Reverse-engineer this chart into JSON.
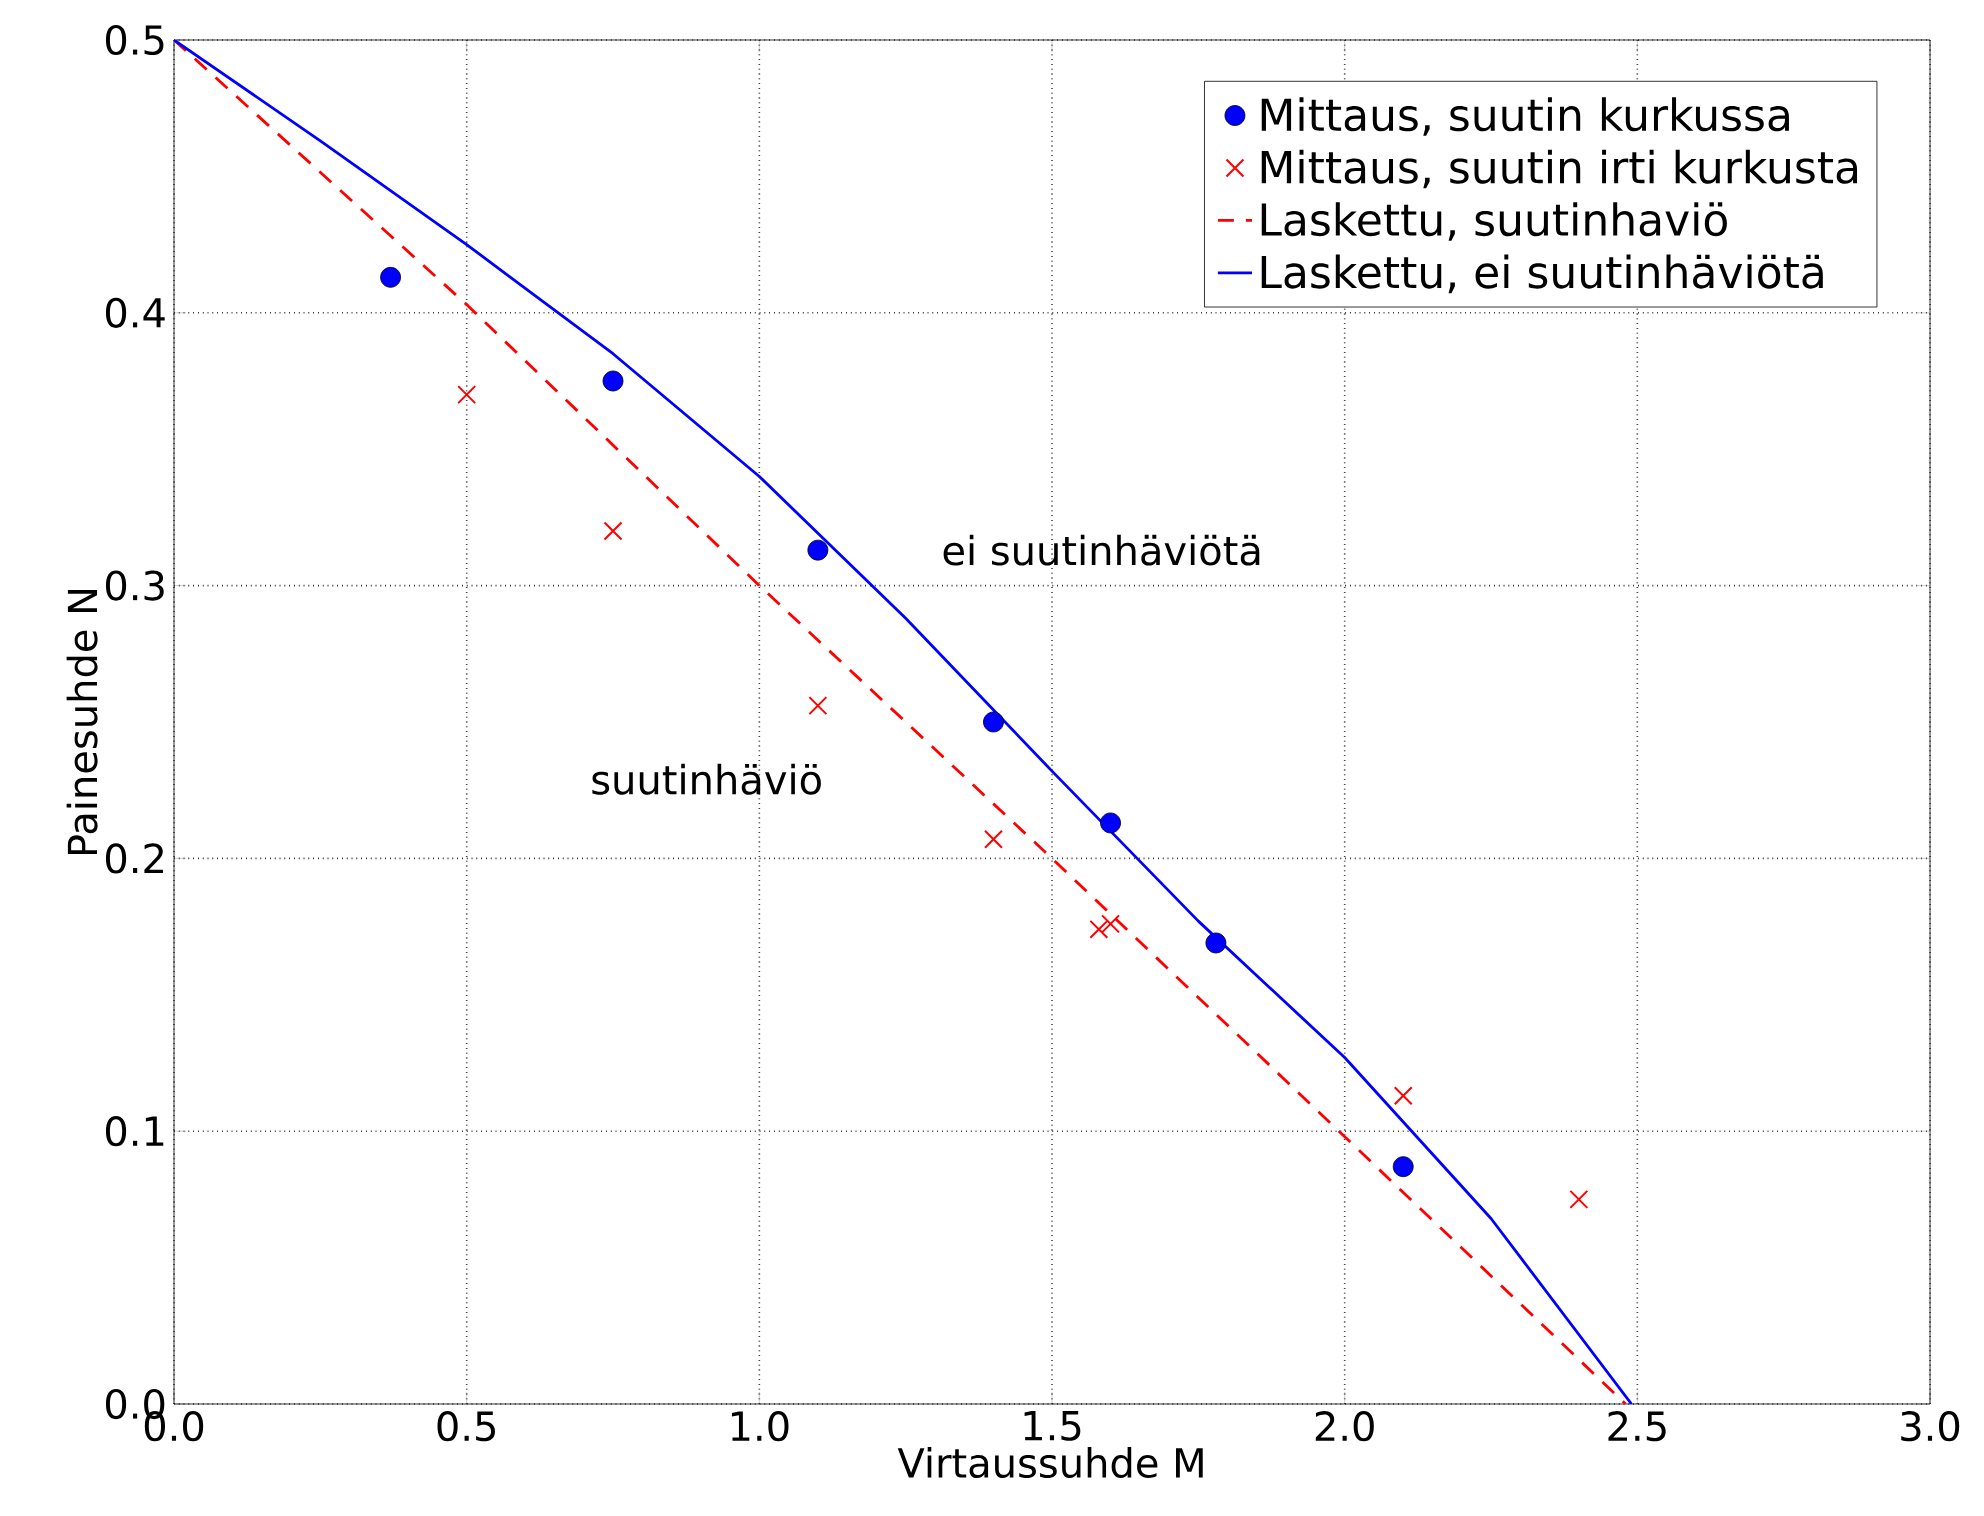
{
  "chart_data": {
    "type": "scatter",
    "xlabel": "Virtaussuhde M",
    "ylabel": "Painesuhde N",
    "xlim": [
      0,
      3
    ],
    "ylim": [
      0,
      0.5
    ],
    "xticks": [
      {
        "value": 0,
        "label": "0.0"
      },
      {
        "value": 0.5,
        "label": "0.5"
      },
      {
        "value": 1,
        "label": "1.0"
      },
      {
        "value": 1.5,
        "label": "1.5"
      },
      {
        "value": 2,
        "label": "2.0"
      },
      {
        "value": 2.5,
        "label": "2.5"
      },
      {
        "value": 3,
        "label": "3.0"
      }
    ],
    "yticks": [
      {
        "value": 0,
        "label": "0.0"
      },
      {
        "value": 0.1,
        "label": "0.1"
      },
      {
        "value": 0.2,
        "label": "0.2"
      },
      {
        "value": 0.3,
        "label": "0.3"
      },
      {
        "value": 0.4,
        "label": "0.4"
      },
      {
        "value": 0.5,
        "label": "0.5"
      }
    ],
    "grid": true,
    "legend": "top right",
    "series": [
      {
        "name": "Mittaus, suutin kurkussa",
        "marker": "circle",
        "color": "#0000ff",
        "x": [
          0.37,
          0.75,
          1.1,
          1.4,
          1.6,
          1.78,
          2.1
        ],
        "values": [
          0.413,
          0.375,
          0.313,
          0.25,
          0.213,
          0.169,
          0.087
        ]
      },
      {
        "name": "Mittaus, suutin irti kurkusta",
        "marker": "cross",
        "color": "#ff0000",
        "x": [
          0.5,
          0.75,
          1.1,
          1.4,
          1.58,
          1.6,
          2.1,
          2.4
        ],
        "values": [
          0.37,
          0.32,
          0.256,
          0.207,
          0.174,
          0.176,
          0.113,
          0.075
        ]
      },
      {
        "name": "Laskettu, suutinhaviö",
        "type": "line",
        "line_style": "dashed",
        "color": "#ff0000",
        "x": [
          0,
          0.5,
          1.0,
          1.5,
          2.0,
          2.48
        ],
        "values": [
          0.5,
          0.403,
          0.3,
          0.2,
          0.098,
          0
        ]
      },
      {
        "name": "Laskettu, ei suutinhäviötä",
        "type": "line",
        "line_style": "solid",
        "color": "#0000ff",
        "x": [
          0,
          0.25,
          0.5,
          0.75,
          1.0,
          1.25,
          1.5,
          1.75,
          2.0,
          2.25,
          2.49
        ],
        "values": [
          0.5,
          0.463,
          0.425,
          0.385,
          0.34,
          0.288,
          0.232,
          0.177,
          0.127,
          0.068,
          0
        ]
      }
    ],
    "annotations": [
      "ei suutinhäviötä",
      "suutinhäviö"
    ]
  }
}
